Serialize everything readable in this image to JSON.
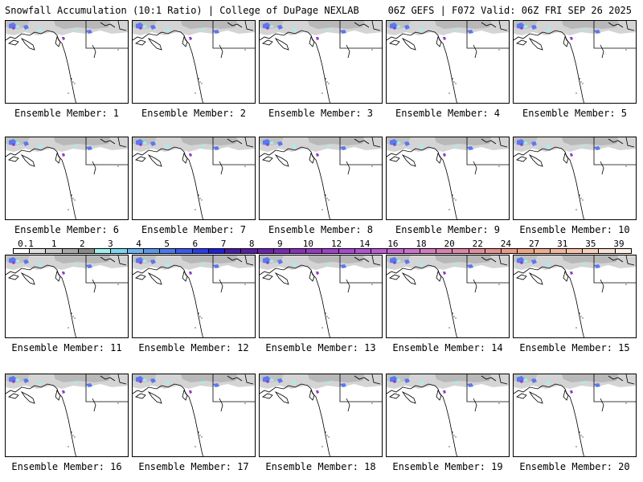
{
  "header": {
    "title_left": "Snowfall Accumulation (10:1 Ratio) | College of DuPage NEXLAB",
    "title_right": "06Z GEFS | F072 Valid: 06Z FRI SEP 26 2025"
  },
  "panels": [
    {
      "label": "Ensemble Member: 1"
    },
    {
      "label": "Ensemble Member: 2"
    },
    {
      "label": "Ensemble Member: 3"
    },
    {
      "label": "Ensemble Member: 4"
    },
    {
      "label": "Ensemble Member: 5"
    },
    {
      "label": "Ensemble Member: 6"
    },
    {
      "label": "Ensemble Member: 7"
    },
    {
      "label": "Ensemble Member: 8"
    },
    {
      "label": "Ensemble Member: 9"
    },
    {
      "label": "Ensemble Member: 10"
    },
    {
      "label": "Ensemble Member: 11"
    },
    {
      "label": "Ensemble Member: 12"
    },
    {
      "label": "Ensemble Member: 13"
    },
    {
      "label": "Ensemble Member: 14"
    },
    {
      "label": "Ensemble Member: 15"
    },
    {
      "label": "Ensemble Member: 16"
    },
    {
      "label": "Ensemble Member: 17"
    },
    {
      "label": "Ensemble Member: 18"
    },
    {
      "label": "Ensemble Member: 19"
    },
    {
      "label": "Ensemble Member: 20"
    }
  ],
  "legend": {
    "labels": [
      "0.1",
      "1",
      "2",
      "3",
      "4",
      "5",
      "6",
      "7",
      "8",
      "9",
      "10",
      "12",
      "14",
      "16",
      "18",
      "20",
      "22",
      "24",
      "27",
      "31",
      "35",
      "39"
    ],
    "colors": [
      "#ffffff",
      "#e0e0e0",
      "#c8c8c8",
      "#a8a8a8",
      "#8a8a8a",
      "#9ef0f0",
      "#7ad8f0",
      "#6cb4f0",
      "#5a96f0",
      "#4a78f0",
      "#3a5af0",
      "#2a3cf0",
      "#1e1ee0",
      "#4a1aa8",
      "#5a1ea8",
      "#6a22b0",
      "#7a28b8",
      "#8a30c0",
      "#9638c8",
      "#a040d0",
      "#aa48d8",
      "#b452d8",
      "#be5cd8",
      "#c866d4",
      "#d070cc",
      "#d67ac0",
      "#dc80b4",
      "#e086a8",
      "#e48c9c",
      "#e89290",
      "#ec9a88",
      "#f0a284",
      "#f2ac8c",
      "#f4b698",
      "#f6c2a8",
      "#f8d0bc",
      "#fae0d4",
      "#fcefe8"
    ]
  }
}
